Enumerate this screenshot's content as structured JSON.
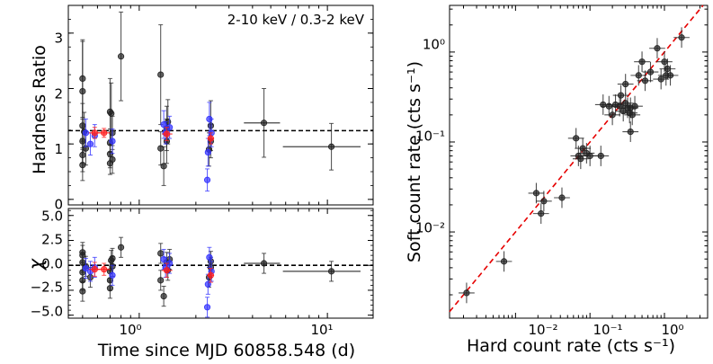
{
  "chart_data": [
    {
      "id": "hardness-ratio",
      "type": "scatter",
      "ylabel": "Hardness Ratio",
      "annotation": "2-10 keV / 0.3-2 keV",
      "x_scale": "log",
      "xlim": [
        0.42,
        17.5
      ],
      "ylim": [
        -0.1,
        3.5
      ],
      "yticks": [
        "0",
        "1",
        "2",
        "3"
      ],
      "mean_line": 1.24,
      "series": [
        {
          "name": "black",
          "color": "#222222",
          "points": [
            {
              "x": 0.5,
              "y": 0.62,
              "err": 0.28
            },
            {
              "x": 0.5,
              "y": 0.8,
              "err": 0.3
            },
            {
              "x": 0.5,
              "y": 1.05,
              "err": 0.4
            },
            {
              "x": 0.5,
              "y": 1.33,
              "err": 0.4
            },
            {
              "x": 0.5,
              "y": 1.95,
              "err": 0.9
            },
            {
              "x": 0.5,
              "y": 2.18,
              "err": 0.7
            },
            {
              "x": 0.51,
              "y": 1.22,
              "err": 0.35
            },
            {
              "x": 0.52,
              "y": 0.92,
              "err": 0.3
            },
            {
              "x": 0.7,
              "y": 0.65,
              "err": 0.2
            },
            {
              "x": 0.7,
              "y": 0.82,
              "err": 0.25
            },
            {
              "x": 0.7,
              "y": 1.02,
              "err": 0.25
            },
            {
              "x": 0.7,
              "y": 1.58,
              "err": 0.6
            },
            {
              "x": 0.71,
              "y": 1.55,
              "err": 0.55
            },
            {
              "x": 0.72,
              "y": 1.2,
              "err": 0.3
            },
            {
              "x": 0.72,
              "y": 0.72,
              "err": 0.25
            },
            {
              "x": 0.8,
              "y": 2.58,
              "err": 0.8
            },
            {
              "x": 1.3,
              "y": 2.25,
              "err": 0.9
            },
            {
              "x": 1.3,
              "y": 0.92,
              "err": 0.3
            },
            {
              "x": 1.35,
              "y": 0.6,
              "err": 0.35
            },
            {
              "x": 1.4,
              "y": 1.28,
              "err": 0.4
            },
            {
              "x": 1.4,
              "y": 1.05,
              "err": 0.4
            },
            {
              "x": 1.42,
              "y": 1.4,
              "err": 0.4
            },
            {
              "x": 2.35,
              "y": 0.9,
              "err": 0.3
            },
            {
              "x": 2.4,
              "y": 1.33,
              "err": 0.45
            },
            {
              "x": 2.4,
              "y": 1.05,
              "err": 0.3
            },
            {
              "x": 4.6,
              "y": 1.38,
              "err": 0.62,
              "xerr": [
                3.6,
                5.6
              ]
            },
            {
              "x": 10.5,
              "y": 0.95,
              "err": 0.42,
              "xerr": [
                5.8,
                15.0
              ]
            }
          ]
        },
        {
          "name": "blue",
          "color": "#3333ff",
          "points": [
            {
              "x": 0.52,
              "y": 1.2,
              "err": 0.25
            },
            {
              "x": 0.55,
              "y": 1.0,
              "err": 0.2
            },
            {
              "x": 0.58,
              "y": 1.15,
              "err": 0.2
            },
            {
              "x": 0.72,
              "y": 1.05,
              "err": 0.22
            },
            {
              "x": 1.35,
              "y": 1.35,
              "err": 0.25
            },
            {
              "x": 1.38,
              "y": 1.2,
              "err": 0.2
            },
            {
              "x": 1.45,
              "y": 1.3,
              "err": 0.2
            },
            {
              "x": 2.3,
              "y": 0.35,
              "err": 0.2
            },
            {
              "x": 2.32,
              "y": 0.85,
              "err": 0.25
            },
            {
              "x": 2.36,
              "y": 1.45,
              "err": 0.3
            },
            {
              "x": 2.42,
              "y": 1.2,
              "err": 0.25
            }
          ]
        },
        {
          "name": "red",
          "color": "#ff2020",
          "points": [
            {
              "x": 0.58,
              "y": 1.2,
              "err": 0.1,
              "xerr": [
                0.54,
                0.62
              ]
            },
            {
              "x": 0.65,
              "y": 1.2,
              "err": 0.08,
              "xerr": [
                0.6,
                0.7
              ]
            },
            {
              "x": 1.4,
              "y": 1.18,
              "err": 0.12,
              "xerr": [
                1.32,
                1.5
              ]
            },
            {
              "x": 2.4,
              "y": 1.1,
              "err": 0.1,
              "xerr": [
                2.3,
                2.5
              ]
            }
          ]
        }
      ]
    },
    {
      "id": "chi-residuals",
      "type": "scatter",
      "ylabel": "χ",
      "xlabel": "Time since MJD 60858.548 (d)",
      "x_scale": "log",
      "xlim": [
        0.42,
        17.5
      ],
      "ylim": [
        -5.3,
        5.7
      ],
      "yticks": [
        "5.0",
        "2.5",
        "0.0",
        "−2.5",
        "−5.0"
      ],
      "xticks": [
        "10⁰",
        "10¹"
      ],
      "zero_line": 0,
      "series": [
        {
          "name": "black",
          "color": "#222222",
          "points": [
            {
              "x": 0.5,
              "y": -2.6,
              "err": 1
            },
            {
              "x": 0.5,
              "y": -1.5,
              "err": 1
            },
            {
              "x": 0.5,
              "y": -0.7,
              "err": 1
            },
            {
              "x": 0.5,
              "y": 0.3,
              "err": 1
            },
            {
              "x": 0.5,
              "y": 1.0,
              "err": 1
            },
            {
              "x": 0.5,
              "y": 1.3,
              "err": 1
            },
            {
              "x": 0.52,
              "y": -0.1,
              "err": 1
            },
            {
              "x": 0.55,
              "y": -1.2,
              "err": 1
            },
            {
              "x": 0.7,
              "y": -2.3,
              "err": 1
            },
            {
              "x": 0.7,
              "y": -1.5,
              "err": 1
            },
            {
              "x": 0.7,
              "y": -0.6,
              "err": 1
            },
            {
              "x": 0.71,
              "y": 0.5,
              "err": 1
            },
            {
              "x": 0.72,
              "y": 0.7,
              "err": 1
            },
            {
              "x": 0.72,
              "y": -0.1,
              "err": 1
            },
            {
              "x": 0.8,
              "y": 1.8,
              "err": 1
            },
            {
              "x": 1.3,
              "y": 1.2,
              "err": 1
            },
            {
              "x": 1.3,
              "y": -1.5,
              "err": 1
            },
            {
              "x": 1.35,
              "y": -3.1,
              "err": 1
            },
            {
              "x": 1.4,
              "y": 0.3,
              "err": 1
            },
            {
              "x": 1.42,
              "y": -0.5,
              "err": 1
            },
            {
              "x": 1.45,
              "y": 0.6,
              "err": 1
            },
            {
              "x": 2.35,
              "y": -1.2,
              "err": 1
            },
            {
              "x": 2.4,
              "y": 0.4,
              "err": 1
            },
            {
              "x": 2.4,
              "y": -0.2,
              "err": 1
            },
            {
              "x": 4.6,
              "y": 0.2,
              "err": 1,
              "xerr": [
                3.6,
                5.6
              ]
            },
            {
              "x": 10.5,
              "y": -0.6,
              "err": 1,
              "xerr": [
                5.8,
                15.0
              ]
            }
          ]
        },
        {
          "name": "blue",
          "color": "#3333ff",
          "points": [
            {
              "x": 0.52,
              "y": -0.3,
              "err": 1
            },
            {
              "x": 0.55,
              "y": -0.6,
              "err": 1
            },
            {
              "x": 0.58,
              "y": -0.2,
              "err": 1
            },
            {
              "x": 0.72,
              "y": -1.0,
              "err": 1
            },
            {
              "x": 1.35,
              "y": 0.6,
              "err": 1
            },
            {
              "x": 1.38,
              "y": -0.2,
              "err": 1
            },
            {
              "x": 1.45,
              "y": 0.2,
              "err": 1
            },
            {
              "x": 2.3,
              "y": -4.2,
              "err": 1
            },
            {
              "x": 2.32,
              "y": -1.9,
              "err": 1
            },
            {
              "x": 2.36,
              "y": 0.8,
              "err": 1
            },
            {
              "x": 2.42,
              "y": -0.6,
              "err": 1
            }
          ]
        },
        {
          "name": "red",
          "color": "#ff2020",
          "points": [
            {
              "x": 0.58,
              "y": -0.4,
              "err": 0.7,
              "xerr": [
                0.54,
                0.62
              ]
            },
            {
              "x": 0.65,
              "y": -0.4,
              "err": 0.6,
              "xerr": [
                0.6,
                0.7
              ]
            },
            {
              "x": 1.4,
              "y": -0.5,
              "err": 0.7,
              "xerr": [
                1.32,
                1.5
              ]
            },
            {
              "x": 2.4,
              "y": -1.0,
              "err": 0.7,
              "xerr": [
                2.3,
                2.5
              ]
            }
          ]
        }
      ]
    },
    {
      "id": "count-rate",
      "type": "scatter",
      "xlabel": "Hard count rate (cts s⁻¹)",
      "ylabel": "Soft count rate (cts s⁻¹)",
      "x_scale": "log",
      "y_scale": "log",
      "xlim": [
        0.0013,
        3.8
      ],
      "ylim": [
        0.0011,
        3.3
      ],
      "xticks": [
        "10⁻²",
        "10⁻¹",
        "10⁰"
      ],
      "yticks": [
        "10⁻²",
        "10⁻¹",
        "10⁰"
      ],
      "one_to_one_line": true,
      "points": [
        {
          "x": 0.0022,
          "y": 0.0021
        },
        {
          "x": 0.007,
          "y": 0.0047
        },
        {
          "x": 0.019,
          "y": 0.027
        },
        {
          "x": 0.022,
          "y": 0.016
        },
        {
          "x": 0.024,
          "y": 0.022
        },
        {
          "x": 0.042,
          "y": 0.024
        },
        {
          "x": 0.065,
          "y": 0.11
        },
        {
          "x": 0.07,
          "y": 0.07
        },
        {
          "x": 0.075,
          "y": 0.065
        },
        {
          "x": 0.08,
          "y": 0.085
        },
        {
          "x": 0.09,
          "y": 0.075
        },
        {
          "x": 0.1,
          "y": 0.07
        },
        {
          "x": 0.14,
          "y": 0.07
        },
        {
          "x": 0.15,
          "y": 0.26
        },
        {
          "x": 0.18,
          "y": 0.25
        },
        {
          "x": 0.2,
          "y": 0.2
        },
        {
          "x": 0.22,
          "y": 0.26
        },
        {
          "x": 0.25,
          "y": 0.25
        },
        {
          "x": 0.26,
          "y": 0.33
        },
        {
          "x": 0.28,
          "y": 0.22
        },
        {
          "x": 0.3,
          "y": 0.44
        },
        {
          "x": 0.3,
          "y": 0.27
        },
        {
          "x": 0.32,
          "y": 0.24
        },
        {
          "x": 0.34,
          "y": 0.21
        },
        {
          "x": 0.35,
          "y": 0.24
        },
        {
          "x": 0.35,
          "y": 0.13
        },
        {
          "x": 0.37,
          "y": 0.2
        },
        {
          "x": 0.4,
          "y": 0.25
        },
        {
          "x": 0.45,
          "y": 0.55
        },
        {
          "x": 0.5,
          "y": 0.78
        },
        {
          "x": 0.55,
          "y": 0.48
        },
        {
          "x": 0.65,
          "y": 0.6
        },
        {
          "x": 0.8,
          "y": 1.1
        },
        {
          "x": 0.9,
          "y": 0.5
        },
        {
          "x": 1.0,
          "y": 0.78
        },
        {
          "x": 1.05,
          "y": 0.55
        },
        {
          "x": 1.1,
          "y": 0.65
        },
        {
          "x": 1.2,
          "y": 0.55
        },
        {
          "x": 1.7,
          "y": 1.45
        }
      ]
    }
  ]
}
